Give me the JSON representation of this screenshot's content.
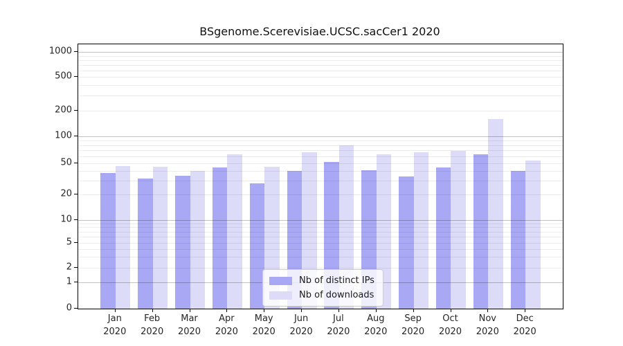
{
  "chart_data": {
    "type": "bar",
    "title": "BSgenome.Scerevisiae.UCSC.sacCer1 2020",
    "months": [
      "Jan",
      "Feb",
      "Mar",
      "Apr",
      "May",
      "Jun",
      "Jul",
      "Aug",
      "Sep",
      "Oct",
      "Nov",
      "Dec"
    ],
    "year": "2020",
    "series": [
      {
        "name": "Nb of distinct IPs",
        "color": "#a8a8f5",
        "values": [
          38,
          32,
          35,
          44,
          28,
          40,
          52,
          41,
          34,
          44,
          63,
          40
        ]
      },
      {
        "name": "Nb of downloads",
        "color": "#dcdcf8",
        "values": [
          46,
          45,
          40,
          63,
          45,
          66,
          80,
          63,
          66,
          69,
          160,
          54
        ]
      }
    ],
    "yticks": [
      0,
      1,
      2,
      5,
      10,
      20,
      50,
      100,
      200,
      500,
      1000
    ],
    "yscale": "log-like (0, then logarithmic 1..1000)",
    "ylim": [
      0,
      1250
    ],
    "grid": "horizontal, major at powers of 10, faint minor lines",
    "legend_position": "lower center inside plot",
    "xlabel": "",
    "ylabel": ""
  }
}
